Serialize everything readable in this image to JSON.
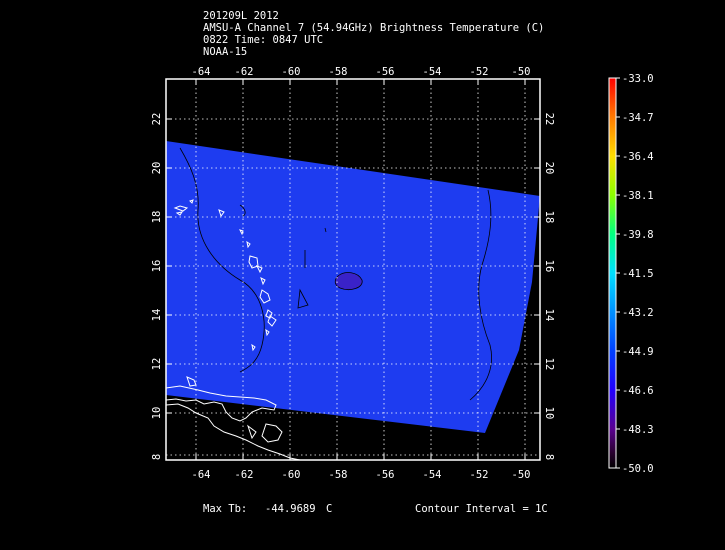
{
  "header": {
    "line1": "201209L 2012",
    "line2": "AMSU-A Channel 7 (54.94GHz) Brightness Temperature (C)",
    "line3": "0822 Time: 0847 UTC",
    "line4": "NOAA-15"
  },
  "axes": {
    "lon_ticks": [
      "-64",
      "-62",
      "-60",
      "-58",
      "-56",
      "-54",
      "-52",
      "-50"
    ],
    "lat_ticks": [
      "22",
      "20",
      "18",
      "16",
      "14",
      "12",
      "10",
      "8"
    ]
  },
  "colorbar": {
    "labels": [
      "-33.0",
      "-34.7",
      "-36.4",
      "-38.1",
      "-39.8",
      "-41.5",
      "-43.2",
      "-44.9",
      "-46.6",
      "-48.3",
      "-50.0"
    ],
    "colors": [
      "#ff0000",
      "#ff7a00",
      "#ffdc00",
      "#8cff00",
      "#00ff80",
      "#00e0ff",
      "#0090ff",
      "#0040ff",
      "#2200ff",
      "#5a0090",
      "#2a0030",
      "#000000"
    ]
  },
  "footer": {
    "max_tb_label": "Max Tb:",
    "max_tb_value": "-44.9689",
    "max_tb_unit": "C",
    "contour_interval": "Contour Interval = 1C"
  },
  "map": {
    "field_color": "#1e3cf0",
    "land_contour_color": "#ffffff",
    "temperature_contour_color": "#000000"
  }
}
